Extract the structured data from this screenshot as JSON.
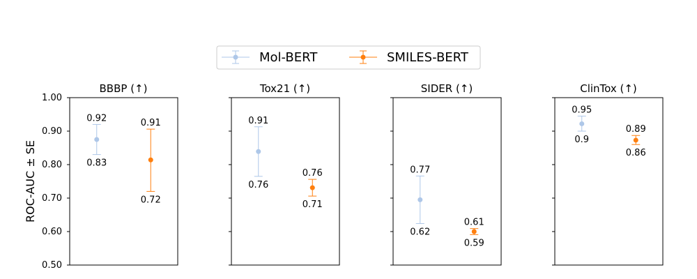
{
  "chart_data": {
    "type": "errorbar",
    "ylabel": "ROC-AUC ± SE",
    "ylim": [
      0.5,
      1.0
    ],
    "yticks": [
      "0.50",
      "0.60",
      "0.70",
      "0.80",
      "0.90",
      "1.00"
    ],
    "ytick_values": [
      0.5,
      0.6,
      0.7,
      0.8,
      0.9,
      1.0
    ],
    "legend_position": "top-center",
    "series": [
      {
        "name": "Mol-BERT",
        "color": "#aec7e8"
      },
      {
        "name": "SMILES-BERT",
        "color": "#ff7f0e"
      }
    ],
    "panels": [
      {
        "title": "BBBP (↑)",
        "points": [
          {
            "series": "Mol-BERT",
            "mean": 0.875,
            "upper": 0.92,
            "lower": 0.83,
            "upper_label": "0.92",
            "lower_label": "0.83"
          },
          {
            "series": "SMILES-BERT",
            "mean": 0.814,
            "upper": 0.906,
            "lower": 0.72,
            "upper_label": "0.91",
            "lower_label": "0.72"
          }
        ]
      },
      {
        "title": "Tox21 (↑)",
        "points": [
          {
            "series": "Mol-BERT",
            "mean": 0.839,
            "upper": 0.913,
            "lower": 0.765,
            "upper_label": "0.91",
            "lower_label": "0.76"
          },
          {
            "series": "SMILES-BERT",
            "mean": 0.731,
            "upper": 0.756,
            "lower": 0.706,
            "upper_label": "0.76",
            "lower_label": "0.71"
          }
        ]
      },
      {
        "title": "SIDER (↑)",
        "points": [
          {
            "series": "Mol-BERT",
            "mean": 0.695,
            "upper": 0.766,
            "lower": 0.624,
            "upper_label": "0.77",
            "lower_label": "0.62"
          },
          {
            "series": "SMILES-BERT",
            "mean": 0.6,
            "upper": 0.609,
            "lower": 0.591,
            "upper_label": "0.61",
            "lower_label": "0.59"
          }
        ]
      },
      {
        "title": "ClinTox (↑)",
        "points": [
          {
            "series": "Mol-BERT",
            "mean": 0.922,
            "upper": 0.945,
            "lower": 0.9,
            "upper_label": "0.95",
            "lower_label": "0.9"
          },
          {
            "series": "SMILES-BERT",
            "mean": 0.873,
            "upper": 0.887,
            "lower": 0.86,
            "upper_label": "0.89",
            "lower_label": "0.86"
          }
        ]
      }
    ]
  }
}
